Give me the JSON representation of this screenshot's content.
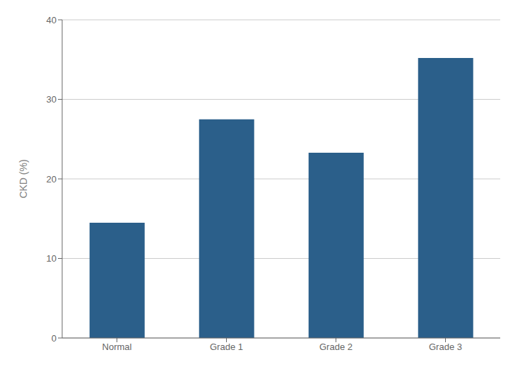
{
  "chart_data": {
    "type": "bar",
    "categories": [
      "Normal",
      "Grade 1",
      "Grade 2",
      "Grade 3"
    ],
    "values": [
      14.5,
      27.5,
      23.3,
      35.2
    ],
    "color": "#2b5f8a",
    "ylabel": "CKD (%)",
    "ylim": [
      0,
      40
    ],
    "yticks": [
      0,
      10,
      20,
      30,
      40
    ],
    "grid": true
  }
}
